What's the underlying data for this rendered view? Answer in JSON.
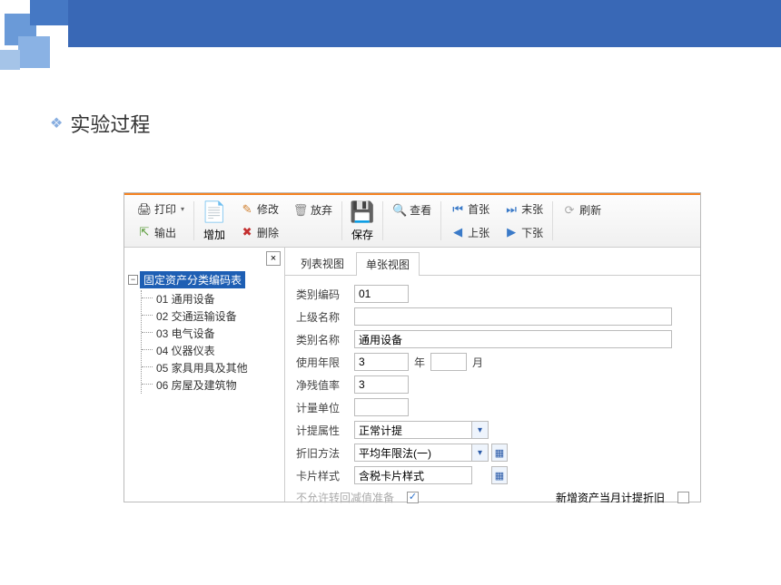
{
  "section_title": "实验过程",
  "colors": {
    "banner": "#3968b6",
    "accent_orange": "#f58220",
    "selection": "#1e5fb4"
  },
  "toolbar": {
    "print": "打印",
    "output": "输出",
    "add": "增加",
    "modify": "修改",
    "delete": "删除",
    "discard": "放弃",
    "save": "保存",
    "view": "查看",
    "first": "首张",
    "last": "末张",
    "prev": "上张",
    "next": "下张",
    "refresh": "刷新"
  },
  "tree": {
    "root": "固定资产分类编码表",
    "items": [
      {
        "code": "01",
        "name": "通用设备"
      },
      {
        "code": "02",
        "name": "交通运输设备"
      },
      {
        "code": "03",
        "name": "电气设备"
      },
      {
        "code": "04",
        "name": "仪器仪表"
      },
      {
        "code": "05",
        "name": "家具用具及其他"
      },
      {
        "code": "06",
        "name": "房屋及建筑物"
      }
    ]
  },
  "tabs": {
    "list": "列表视图",
    "single": "单张视图"
  },
  "form": {
    "labels": {
      "code": "类别编码",
      "parent": "上级名称",
      "name": "类别名称",
      "life": "使用年限",
      "year_unit": "年",
      "month_unit": "月",
      "residual": "净残值率",
      "unit": "计量单位",
      "attr": "计提属性",
      "method": "折旧方法",
      "card": "卡片样式"
    },
    "values": {
      "code": "01",
      "parent": "",
      "name": "通用设备",
      "life_year": "3",
      "life_month": "",
      "residual": "3",
      "unit": "",
      "attr": "正常计提",
      "method": "平均年限法(一)",
      "card": "含税卡片样式"
    },
    "footer": {
      "disabled_opt": "不允许转回减值准备",
      "new_asset_opt": "新增资产当月计提折旧"
    }
  }
}
